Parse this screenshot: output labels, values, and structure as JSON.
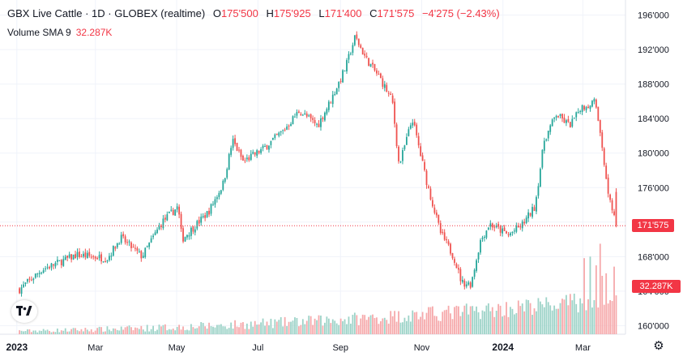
{
  "header": {
    "symbol_title": "GBX Live Cattle · 1D · GLOBEX (realtime)",
    "open_label": "O",
    "open_value": "175'500",
    "high_label": "H",
    "high_value": "175'925",
    "low_label": "L",
    "low_value": "171'400",
    "close_label": "C",
    "close_value": "171'575",
    "change_value": "−4'275 (−2.43%)"
  },
  "volume_legend": {
    "label": "Volume SMA 9",
    "value": "32.287K"
  },
  "price_tag": "171'575",
  "volume_tag": "32.287K",
  "icons": {
    "logo": "tradingview-logo-icon",
    "settings": "gear-icon"
  },
  "colors": {
    "up": "#26a69a",
    "down": "#ef5350",
    "vol_up": "#9dd3c8",
    "vol_down": "#f6a9ab",
    "last_price": "#f23645",
    "grid": "#f0f3fa"
  },
  "chart_data": {
    "type": "candlestick",
    "title": "GBX Live Cattle · 1D · GLOBEX (realtime)",
    "ylim": [
      159000,
      197000
    ],
    "y_ticks": [
      "160'000",
      "164'000",
      "168'000",
      "172'000",
      "176'000",
      "180'000",
      "184'000",
      "188'000",
      "192'000",
      "196'000"
    ],
    "y_tick_values": [
      160000,
      164000,
      168000,
      172000,
      176000,
      180000,
      184000,
      188000,
      192000,
      196000
    ],
    "x_ticks": [
      "2023",
      "Mar",
      "May",
      "Jul",
      "Sep",
      "Nov",
      "2024",
      "Mar"
    ],
    "last_price": 171575,
    "grid": true,
    "close_path_dates": [
      "2023-01-03",
      "2023-01-20",
      "2023-02-15",
      "2023-03-10",
      "2023-03-20",
      "2023-04-05",
      "2023-04-20",
      "2023-05-02",
      "2023-05-05",
      "2023-05-25",
      "2023-06-05",
      "2023-06-12",
      "2023-06-20",
      "2023-07-05",
      "2023-07-20",
      "2023-08-01",
      "2023-08-15",
      "2023-08-25",
      "2023-09-05",
      "2023-09-12",
      "2023-09-20",
      "2023-10-01",
      "2023-10-10",
      "2023-10-15",
      "2023-10-25",
      "2023-11-05",
      "2023-11-15",
      "2023-11-25",
      "2023-12-01",
      "2023-12-08",
      "2023-12-15",
      "2023-12-22",
      "2024-01-05",
      "2024-01-15",
      "2024-01-25",
      "2024-02-01",
      "2024-02-10",
      "2024-02-20",
      "2024-03-01",
      "2024-03-10",
      "2024-03-15",
      "2024-03-20",
      "2024-03-26"
    ],
    "close_path": [
      164200,
      166500,
      168200,
      167800,
      170200,
      168000,
      172000,
      173800,
      170000,
      173200,
      176500,
      181500,
      179000,
      180500,
      182600,
      184900,
      183200,
      186200,
      190000,
      193500,
      191000,
      188600,
      186000,
      178500,
      184000,
      176500,
      170800,
      168000,
      165000,
      164800,
      169800,
      171800,
      170500,
      171600,
      173800,
      181500,
      184500,
      183200,
      185400,
      186000,
      181000,
      175600,
      171575
    ],
    "volume_sma": 32287
  }
}
